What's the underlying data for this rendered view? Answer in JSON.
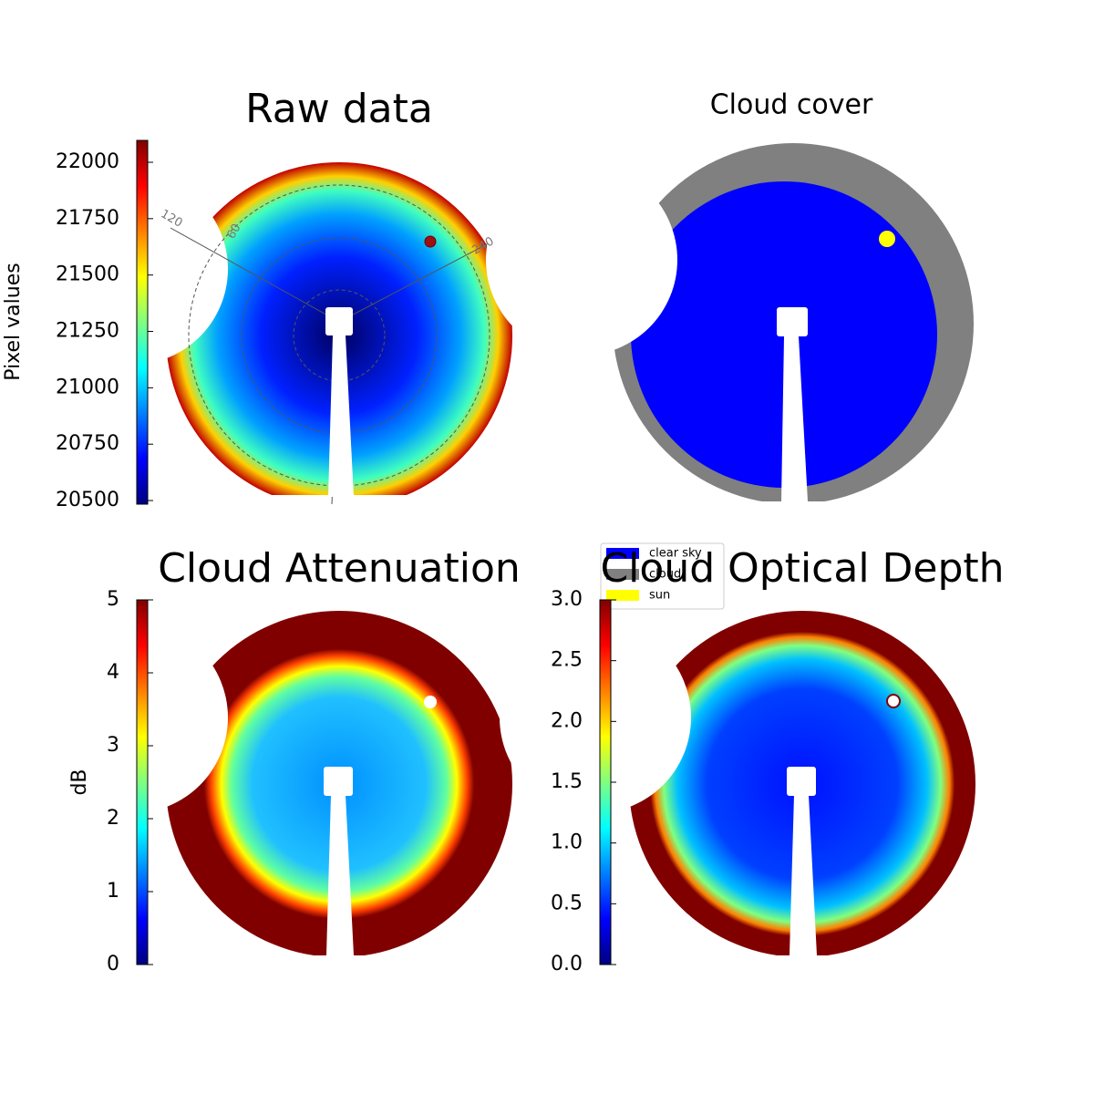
{
  "chart_data": [
    {
      "type": "image",
      "title": "Raw data",
      "colorbar_label": "Pixel values",
      "colormap": "jet",
      "ylim": [
        20484,
        22097
      ],
      "yticks": [
        20500,
        20750,
        21000,
        21250,
        21500,
        21750,
        22000
      ],
      "annotations": [
        "120",
        "60",
        "240"
      ]
    },
    {
      "type": "image",
      "title": "Cloud cover",
      "legend": {
        "entries": [
          {
            "name": "clear sky",
            "color": "#0000ff"
          },
          {
            "name": "cloud",
            "color": "#808080"
          },
          {
            "name": "sun",
            "color": "#ffff00"
          }
        ]
      }
    },
    {
      "type": "image",
      "title": "Cloud Attenuation",
      "colorbar_label": "dB",
      "colormap": "jet",
      "ylim": [
        0,
        5
      ],
      "yticks": [
        0,
        1,
        2,
        3,
        4,
        5
      ]
    },
    {
      "type": "image",
      "title": "Cloud Optical Depth",
      "colormap": "jet",
      "ylim": [
        0,
        3
      ],
      "yticks": [
        {
          "value": 0,
          "label": "0.0"
        },
        {
          "value": 0.5,
          "label": "0.5"
        },
        {
          "value": 1,
          "label": "1.0"
        },
        {
          "value": 1.5,
          "label": "1.5"
        },
        {
          "value": 2,
          "label": "2.0"
        },
        {
          "value": 2.5,
          "label": "2.5"
        },
        {
          "value": 3,
          "label": "3.0"
        }
      ]
    }
  ]
}
